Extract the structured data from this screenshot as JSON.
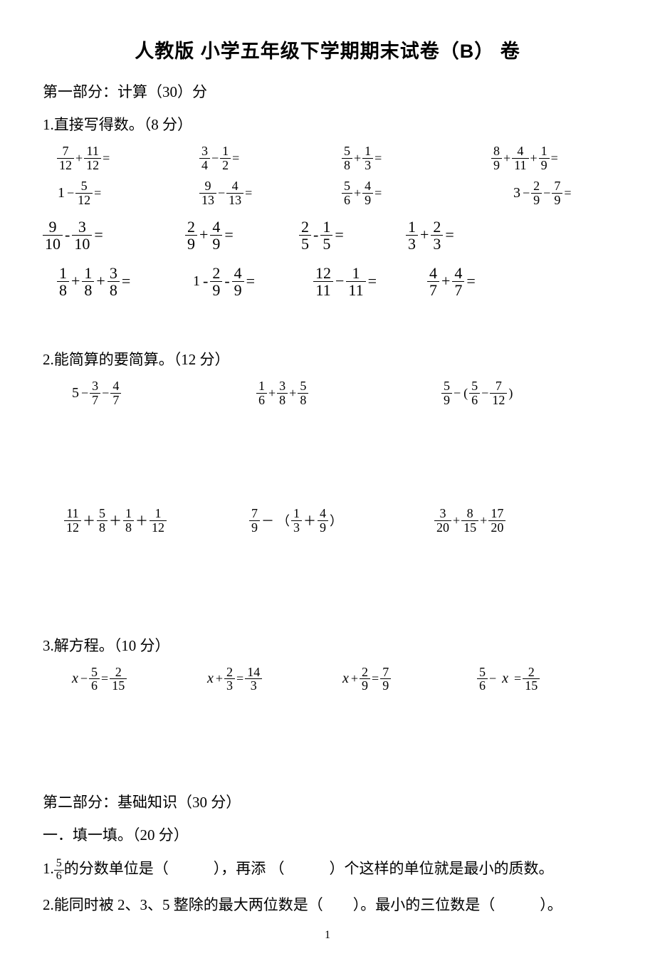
{
  "title_prefix": "人教版 小学五年级下学期期末试卷",
  "title_paren_open": "（",
  "title_letter": "B",
  "title_paren_close": "）",
  "title_suffix": " 卷",
  "part1_header": "第一部分：计算（30）分",
  "q1_header": "1.直接写得数。（8 分）",
  "q1": {
    "r1": [
      {
        "terms": [
          {
            "n": "7",
            "d": "12"
          },
          {
            "op": "+"
          },
          {
            "n": "11",
            "d": "12"
          },
          {
            "op": "="
          }
        ]
      },
      {
        "terms": [
          {
            "n": "3",
            "d": "4"
          },
          {
            "op": "−"
          },
          {
            "n": "1",
            "d": "2"
          },
          {
            "op": "="
          }
        ]
      },
      {
        "terms": [
          {
            "n": "5",
            "d": "8"
          },
          {
            "op": "+"
          },
          {
            "n": "1",
            "d": "3"
          },
          {
            "op": "="
          }
        ]
      },
      {
        "terms": [
          {
            "n": "8",
            "d": "9"
          },
          {
            "op": "+"
          },
          {
            "n": "4",
            "d": "11"
          },
          {
            "op": "+"
          },
          {
            "n": "1",
            "d": "9"
          },
          {
            "op": "="
          }
        ]
      }
    ],
    "r2": [
      {
        "terms": [
          {
            "w": "1"
          },
          {
            "op": "−"
          },
          {
            "n": "5",
            "d": "12"
          },
          {
            "op": "="
          }
        ]
      },
      {
        "terms": [
          {
            "n": "9",
            "d": "13"
          },
          {
            "op": "−"
          },
          {
            "n": "4",
            "d": "13"
          },
          {
            "op": "="
          }
        ]
      },
      {
        "terms": [
          {
            "n": "5",
            "d": "6"
          },
          {
            "op": "+"
          },
          {
            "n": "4",
            "d": "9"
          },
          {
            "op": "="
          }
        ]
      },
      {
        "terms": [
          {
            "w": "3"
          },
          {
            "op": "−"
          },
          {
            "n": "2",
            "d": "9"
          },
          {
            "op": "−"
          },
          {
            "n": "7",
            "d": "9"
          },
          {
            "op": "="
          }
        ]
      }
    ],
    "r3": [
      {
        "big": true,
        "terms": [
          {
            "n": "9",
            "d": "10"
          },
          {
            "op": "-"
          },
          {
            "n": "3",
            "d": "10"
          },
          {
            "op": "="
          }
        ]
      },
      {
        "big": true,
        "terms": [
          {
            "n": "2",
            "d": "9"
          },
          {
            "op": "+"
          },
          {
            "n": "4",
            "d": "9"
          },
          {
            "op": "="
          }
        ]
      },
      {
        "big": true,
        "terms": [
          {
            "n": "2",
            "d": "5"
          },
          {
            "op": "-"
          },
          {
            "n": "1",
            "d": "5"
          },
          {
            "op": "="
          }
        ]
      },
      {
        "big": true,
        "terms": [
          {
            "n": "1",
            "d": "3"
          },
          {
            "op": "+"
          },
          {
            "n": "2",
            "d": "3"
          },
          {
            "op": "="
          }
        ]
      }
    ],
    "r4": [
      {
        "big": true,
        "terms": [
          {
            "n": "1",
            "d": "8"
          },
          {
            "op": "+"
          },
          {
            "n": "1",
            "d": "8"
          },
          {
            "op": "+"
          },
          {
            "n": "3",
            "d": "8"
          },
          {
            "op": "="
          }
        ]
      },
      {
        "big": true,
        "terms": [
          {
            "w": "1"
          },
          {
            "op": "-"
          },
          {
            "n": "2",
            "d": "9"
          },
          {
            "op": "-"
          },
          {
            "n": "4",
            "d": "9"
          },
          {
            "op": "="
          }
        ]
      },
      {
        "big": true,
        "terms": [
          {
            "n": "12",
            "d": "11"
          },
          {
            "op": "−"
          },
          {
            "n": "1",
            "d": "11"
          },
          {
            "op": "="
          }
        ]
      },
      {
        "big": true,
        "terms": [
          {
            "n": "4",
            "d": "7"
          },
          {
            "op": "+"
          },
          {
            "n": "4",
            "d": "7"
          },
          {
            "op": "="
          }
        ]
      }
    ]
  },
  "q2_header": "2.能简算的要简算。（12 分）",
  "q2": {
    "r1": [
      {
        "terms": [
          {
            "w": "5"
          },
          {
            "op": "−"
          },
          {
            "n": "3",
            "d": "7"
          },
          {
            "op": "−"
          },
          {
            "n": "4",
            "d": "7"
          }
        ]
      },
      {
        "terms": [
          {
            "n": "1",
            "d": "6"
          },
          {
            "op": "+"
          },
          {
            "n": "3",
            "d": "8"
          },
          {
            "op": "+"
          },
          {
            "n": "5",
            "d": "8"
          }
        ]
      },
      {
        "terms": [
          {
            "n": "5",
            "d": "9"
          },
          {
            "op": "−"
          },
          {
            "op": "("
          },
          {
            "n": "5",
            "d": "6"
          },
          {
            "op": "−"
          },
          {
            "n": "7",
            "d": "12"
          },
          {
            "op": ")"
          }
        ]
      }
    ],
    "r2": [
      {
        "terms": [
          {
            "n": "11",
            "d": "12"
          },
          {
            "op": "＋"
          },
          {
            "n": "5",
            "d": "8"
          },
          {
            "op": "＋"
          },
          {
            "n": "1",
            "d": "8"
          },
          {
            "op": "＋"
          },
          {
            "n": "1",
            "d": "12"
          }
        ]
      },
      {
        "terms": [
          {
            "n": "7",
            "d": "9"
          },
          {
            "op": "－"
          },
          {
            "op": "（"
          },
          {
            "n": "1",
            "d": "3"
          },
          {
            "op": "＋"
          },
          {
            "n": "4",
            "d": "9"
          },
          {
            "op": "）"
          }
        ]
      },
      {
        "terms": [
          {
            "n": "3",
            "d": "20"
          },
          {
            "op": "+"
          },
          {
            "n": "8",
            "d": "15"
          },
          {
            "op": "+"
          },
          {
            "n": "17",
            "d": "20"
          }
        ]
      }
    ]
  },
  "q3_header": "3.解方程。（10 分）",
  "q3": {
    "r1": [
      {
        "terms": [
          {
            "var": "x"
          },
          {
            "op": "−"
          },
          {
            "n": "5",
            "d": "6"
          },
          {
            "op": "="
          },
          {
            "n": "2",
            "d": "15"
          }
        ]
      },
      {
        "terms": [
          {
            "var": "x"
          },
          {
            "op": "+"
          },
          {
            "n": "2",
            "d": "3"
          },
          {
            "op": "="
          },
          {
            "n": "14",
            "d": "3"
          }
        ]
      },
      {
        "terms": [
          {
            "var": "x"
          },
          {
            "op": "+"
          },
          {
            "n": "2",
            "d": "9"
          },
          {
            "op": "="
          },
          {
            "n": "7",
            "d": "9"
          }
        ]
      },
      {
        "terms": [
          {
            "n": "5",
            "d": "6"
          },
          {
            "op": "−"
          },
          {
            "var": "x",
            "spaced": true
          },
          {
            "op": "="
          },
          {
            "n": "2",
            "d": "15"
          }
        ]
      }
    ]
  },
  "part2_header": "第二部分：基础知识（30 分）",
  "sec1_header": "一．填一填。（20 分）",
  "fill1_a": "1.",
  "fill1_frac": {
    "n": "5",
    "d": "6"
  },
  "fill1_b": "的分数单位是（　　　），再添 （　　　）个这样的单位就是最小的质数。",
  "fill2": "2.能同时被 2、3、5 整除的最大两位数是（　　）。最小的三位数是（　　　）。",
  "page_number": "1"
}
